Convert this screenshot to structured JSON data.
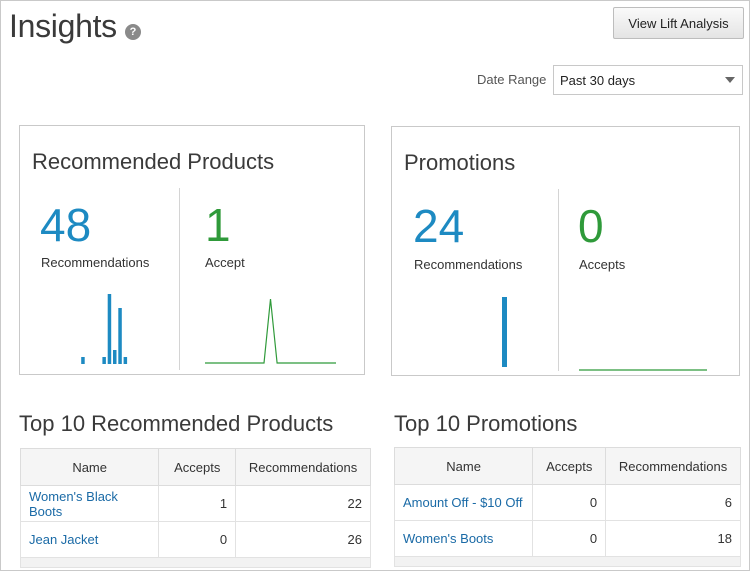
{
  "header": {
    "title": "Insights",
    "help_icon": "?",
    "lift_button": "View Lift Analysis"
  },
  "date_range": {
    "label": "Date Range",
    "selected": "Past 30 days"
  },
  "cards": {
    "products": {
      "title": "Recommended Products",
      "recommendations": {
        "value": "48",
        "label": "Recommendations",
        "sparkline": [
          0,
          0,
          0,
          0,
          1,
          0,
          0,
          0,
          1,
          10,
          2,
          8,
          1
        ]
      },
      "accepts": {
        "value": "1",
        "label": "Accept",
        "sparkline": [
          0,
          0,
          0,
          0,
          0,
          0,
          0,
          0,
          0,
          0,
          1,
          0,
          0,
          0,
          0,
          0,
          0,
          0,
          0,
          0,
          0
        ]
      }
    },
    "promotions": {
      "title": "Promotions",
      "recommendations": {
        "value": "24",
        "label": "Recommendations",
        "sparkline": [
          24
        ]
      },
      "accepts": {
        "value": "0",
        "label": "Accepts",
        "sparkline": [
          0,
          0,
          0,
          0,
          0,
          0,
          0,
          0,
          0,
          0
        ]
      }
    }
  },
  "colors": {
    "blue": "#1d8ac2",
    "green": "#2f9a3a"
  },
  "top_products": {
    "title": "Top 10 Recommended Products",
    "columns": [
      "Name",
      "Accepts",
      "Recommendations"
    ],
    "rows": [
      {
        "name": "Women's Black Boots",
        "accepts": "1",
        "recommendations": "22"
      },
      {
        "name": "Jean Jacket",
        "accepts": "0",
        "recommendations": "26"
      }
    ]
  },
  "top_promotions": {
    "title": "Top 10 Promotions",
    "columns": [
      "Name",
      "Accepts",
      "Recommendations"
    ],
    "rows": [
      {
        "name": "Amount Off - $10 Off",
        "accepts": "0",
        "recommendations": "6"
      },
      {
        "name": "Women's Boots",
        "accepts": "0",
        "recommendations": "18"
      }
    ]
  }
}
